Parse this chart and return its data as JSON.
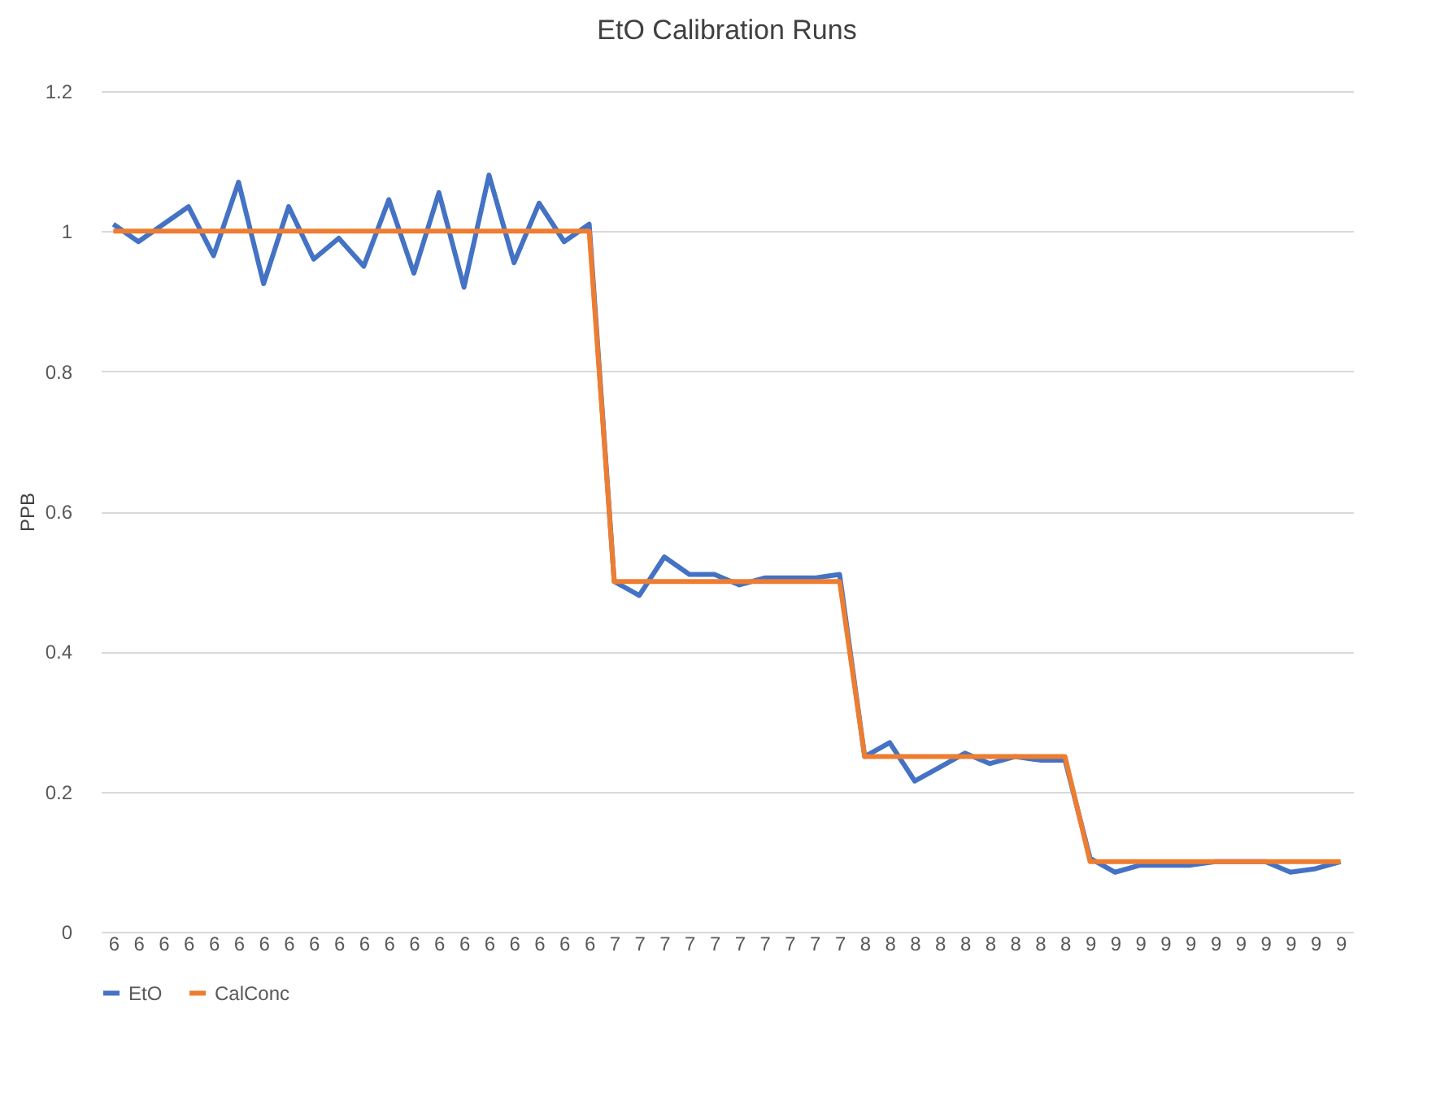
{
  "chart_data": {
    "type": "line",
    "title": "EtO Calibration Runs",
    "ylabel": "PPB",
    "categories": [
      "6",
      "6",
      "6",
      "6",
      "6",
      "6",
      "6",
      "6",
      "6",
      "6",
      "6",
      "6",
      "6",
      "6",
      "6",
      "6",
      "6",
      "6",
      "6",
      "6",
      "7",
      "7",
      "7",
      "7",
      "7",
      "7",
      "7",
      "7",
      "7",
      "7",
      "8",
      "8",
      "8",
      "8",
      "8",
      "8",
      "8",
      "8",
      "8",
      "9",
      "9",
      "9",
      "9",
      "9",
      "9",
      "9",
      "9",
      "9",
      "9",
      "9"
    ],
    "series": [
      {
        "name": "EtO",
        "color": "#4472c4",
        "values": [
          1.01,
          0.985,
          1.01,
          1.035,
          0.965,
          1.07,
          0.925,
          1.035,
          0.96,
          0.99,
          0.95,
          1.045,
          0.94,
          1.055,
          0.92,
          1.08,
          0.955,
          1.04,
          0.985,
          1.01,
          0.5,
          0.48,
          0.535,
          0.51,
          0.51,
          0.495,
          0.505,
          0.505,
          0.505,
          0.51,
          0.25,
          0.27,
          0.215,
          0.235,
          0.255,
          0.24,
          0.25,
          0.245,
          0.245,
          0.105,
          0.085,
          0.095,
          0.095,
          0.095,
          0.1,
          0.1,
          0.1,
          0.085,
          0.09,
          0.1
        ]
      },
      {
        "name": "CalConc",
        "color": "#ed7d31",
        "values": [
          1,
          1,
          1,
          1,
          1,
          1,
          1,
          1,
          1,
          1,
          1,
          1,
          1,
          1,
          1,
          1,
          1,
          1,
          1,
          1,
          0.5,
          0.5,
          0.5,
          0.5,
          0.5,
          0.5,
          0.5,
          0.5,
          0.5,
          0.5,
          0.25,
          0.25,
          0.25,
          0.25,
          0.25,
          0.25,
          0.25,
          0.25,
          0.25,
          0.1,
          0.1,
          0.1,
          0.1,
          0.1,
          0.1,
          0.1,
          0.1,
          0.1,
          0.1,
          0.1
        ]
      }
    ],
    "ylim": [
      0,
      1.2
    ],
    "yticks": [
      0,
      0.2,
      0.4,
      0.6,
      0.8,
      1,
      1.2
    ],
    "grid": "y",
    "legend": "bottom",
    "marker": "none",
    "line_style": "solid"
  }
}
